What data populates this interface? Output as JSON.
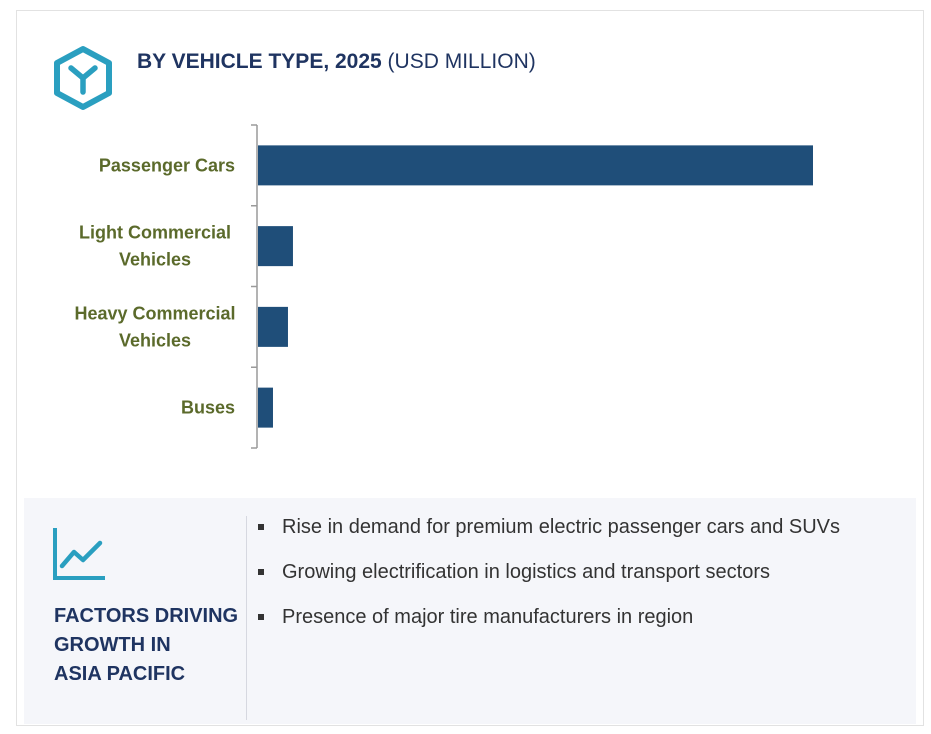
{
  "header": {
    "title_bold": "BY VEHICLE TYPE, 2025",
    "title_rest": " (USD MILLION)",
    "icon": "hexagon-logo-icon",
    "accent_color": "#2a9fc0"
  },
  "chart_data": {
    "type": "bar",
    "orientation": "horizontal",
    "title": "BY VEHICLE TYPE, 2025 (USD MILLION)",
    "categories": [
      [
        "Passenger Cars"
      ],
      [
        "Light Commercial",
        "Vehicles"
      ],
      [
        "Heavy Commercial",
        "Vehicles"
      ],
      [
        "Buses"
      ]
    ],
    "values": [
      100,
      6.3,
      5.4,
      2.7
    ],
    "xlim": [
      0,
      100
    ],
    "xlabel": "",
    "ylabel": "",
    "grid": false,
    "bar_color": "#1f4e79",
    "label_color": "#5b6a2b"
  },
  "factors": {
    "icon": "trend-chart-icon",
    "heading_lines": [
      "FACTORS DRIVING",
      "GROWTH IN",
      "ASIA PACIFIC"
    ],
    "items": [
      "Rise in demand for premium electric passenger cars and SUVs",
      "Growing electrification in logistics and transport sectors",
      "Presence of major tire manufacturers in region"
    ]
  }
}
